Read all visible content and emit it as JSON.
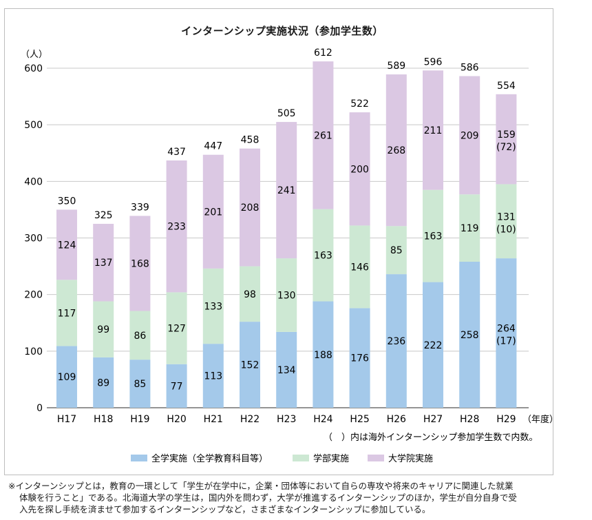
{
  "chart_data": {
    "type": "bar",
    "stacked": true,
    "title": "インターンシップ実施状況（参加学生数）",
    "ylabel": "（人）",
    "xunit": "（年度）",
    "ylim": [
      0,
      600
    ],
    "yticks": [
      "0",
      "100",
      "200",
      "300",
      "400",
      "500",
      "600"
    ],
    "categories": [
      "H17",
      "H18",
      "H19",
      "H20",
      "H21",
      "H22",
      "H23",
      "H24",
      "H25",
      "H26",
      "H27",
      "H28",
      "H29"
    ],
    "series": [
      {
        "name": "全学実施（全学教育科目等）",
        "color": "#a4c9ea",
        "values": [
          109,
          89,
          85,
          77,
          113,
          152,
          134,
          188,
          176,
          236,
          222,
          258,
          264
        ]
      },
      {
        "name": "学部実施",
        "color": "#cde8d3",
        "values": [
          117,
          99,
          86,
          127,
          133,
          98,
          130,
          163,
          146,
          85,
          163,
          119,
          131
        ]
      },
      {
        "name": "大学院実施",
        "color": "#dbc8e3",
        "values": [
          124,
          137,
          168,
          233,
          201,
          208,
          241,
          261,
          200,
          268,
          211,
          209,
          159
        ]
      }
    ],
    "totals": [
      350,
      325,
      339,
      437,
      447,
      458,
      505,
      612,
      522,
      589,
      596,
      586,
      554
    ],
    "overseas": [
      {
        "category": "H29",
        "series": "全学実施（全学教育科目等）",
        "label": "(17)"
      },
      {
        "category": "H29",
        "series": "学部実施",
        "label": "(10)"
      },
      {
        "category": "H29",
        "series": "大学院実施",
        "label": "(72)"
      }
    ],
    "note": "（　）内は海外インターンシップ参加学生数で内数。",
    "legend_position": "bottom",
    "grid": true
  },
  "footnote": {
    "line1": "※インターンシップとは，教育の一環として「学生が在学中に，企業・団体等において自らの専攻や将来のキャリアに関連した就業",
    "line2": "体験を行うこと」である。北海道大学の学生は，国内外を問わず，大学が推進するインターンシップのほか，学生が自分自身で受",
    "line3": "入先を探し手続を済ませて参加するインターンシップなど，さまざまなインターンシップに参加している。"
  }
}
